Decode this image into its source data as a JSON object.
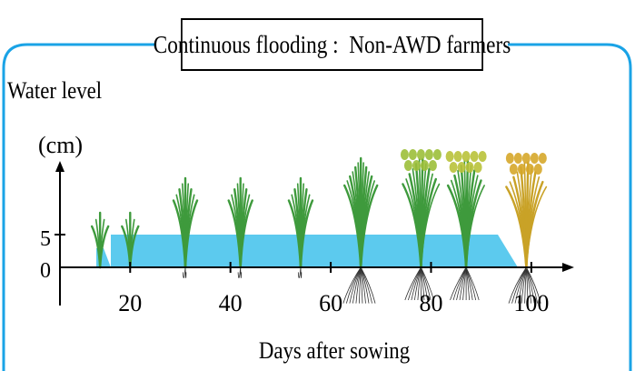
{
  "title": "Continuous flooding :  Non-AWD farmers",
  "y_axis": {
    "label_line1": "Water level",
    "label_line2": "(cm)",
    "ticks": [
      "5",
      "0"
    ]
  },
  "x_axis": {
    "label": "Days after sowing",
    "ticks": [
      "20",
      "40",
      "60",
      "80",
      "100"
    ]
  },
  "colors": {
    "frame": "#1aa3e6",
    "water": "#5ccaee",
    "plant_young": "#3e9a3c",
    "plant_ripe": "#c9a227",
    "roots": "#333333"
  },
  "plants": [
    {
      "day": 14,
      "stage": "seedling"
    },
    {
      "day": 20,
      "stage": "seedling"
    },
    {
      "day": 31,
      "stage": "tillering"
    },
    {
      "day": 42,
      "stage": "tillering"
    },
    {
      "day": 54,
      "stage": "tillering"
    },
    {
      "day": 66,
      "stage": "booting"
    },
    {
      "day": 78,
      "stage": "heading"
    },
    {
      "day": 87,
      "stage": "flowering"
    },
    {
      "day": 99,
      "stage": "mature"
    }
  ]
}
